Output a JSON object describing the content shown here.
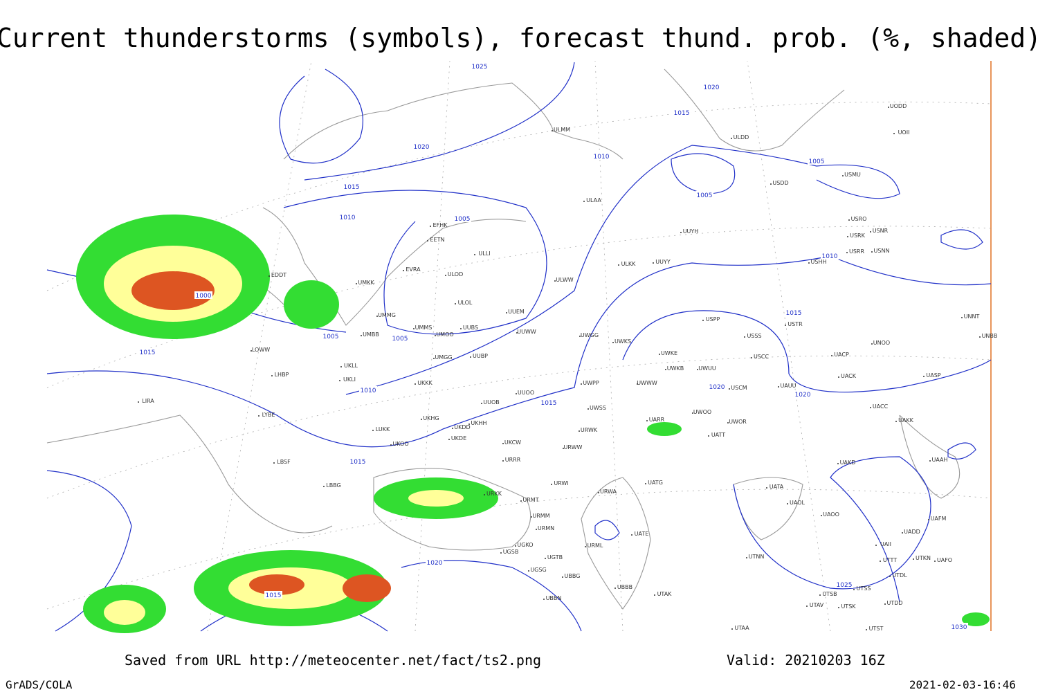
{
  "header": {
    "title": "Current thunderstorms (symbols), forecast thund. prob. (%, shaded)"
  },
  "isobar_labels": [
    "1025",
    "1020",
    "1015",
    "1020",
    "1010",
    "1005",
    "1005",
    "1015",
    "1010",
    "1005",
    "1010",
    "1000",
    "1005",
    "1005",
    "1015",
    "1015",
    "1010",
    "1020",
    "1020",
    "1015",
    "1015",
    "1020",
    "1015",
    "1025",
    "1030"
  ],
  "stations": [
    "ULMM",
    "ULDD",
    "UODD",
    "UOII",
    "USDD",
    "USMU",
    "ULAA",
    "EFHK",
    "EETN",
    "ULLI",
    "UUYH",
    "USRO",
    "USRK",
    "USNR",
    "USRR",
    "USNN",
    "USHH",
    "ULKK",
    "UUYY",
    "EVRA",
    "ULOD",
    "ULWW",
    "UMKK",
    "EDDT",
    "ULOL",
    "UUEM",
    "UMMG",
    "UMMS",
    "UMOO",
    "UUBS",
    "UUWW",
    "UMBB",
    "UWGG",
    "UWKS",
    "USPP",
    "USSS",
    "USTR",
    "UNOO",
    "UNNT",
    "UNBB",
    "LOWW",
    "UMGG",
    "UUBP",
    "UWKE",
    "USCC",
    "UACP",
    "UKLL",
    "UWKB",
    "UWUU",
    "LHBP",
    "UKLI",
    "UWPP",
    "UWWW",
    "USCM",
    "UAUU",
    "UACK",
    "UASP",
    "UKKK",
    "UUOO",
    "LIRA",
    "UUOB",
    "UWSS",
    "UACC",
    "LYBE",
    "UKHG",
    "UKDD",
    "UKHH",
    "UWOO",
    "UWOR",
    "UARR",
    "UAKK",
    "LUKK",
    "URWK",
    "UATT",
    "UKDE",
    "UKOO",
    "UKCW",
    "URWW",
    "LBSF",
    "URRR",
    "UAKD",
    "UAAH",
    "URWI",
    "LBBG",
    "UATG",
    "URKK",
    "URMT",
    "URWA",
    "UATA",
    "UAOL",
    "UAOO",
    "UAFM",
    "URMM",
    "UATE",
    "URMN",
    "UADD",
    "UGKO",
    "URML",
    "UAII",
    "UGSB",
    "UGTB",
    "UTNN",
    "UTTT",
    "UTKN",
    "UAFO",
    "UGSG",
    "UBBG",
    "UTDL",
    "UBBB",
    "UTAK",
    "UTSS",
    "UTSB",
    "UBBN",
    "UTDD",
    "UTAV",
    "UTSK",
    "UTAA",
    "UTST"
  ],
  "footer": {
    "source": "Saved from URL http://meteocenter.net/fact/ts2.png",
    "valid": "Valid: 20210203 16Z",
    "credit": "GrADS/COLA",
    "timestamp": "2021-02-03-16:46"
  }
}
